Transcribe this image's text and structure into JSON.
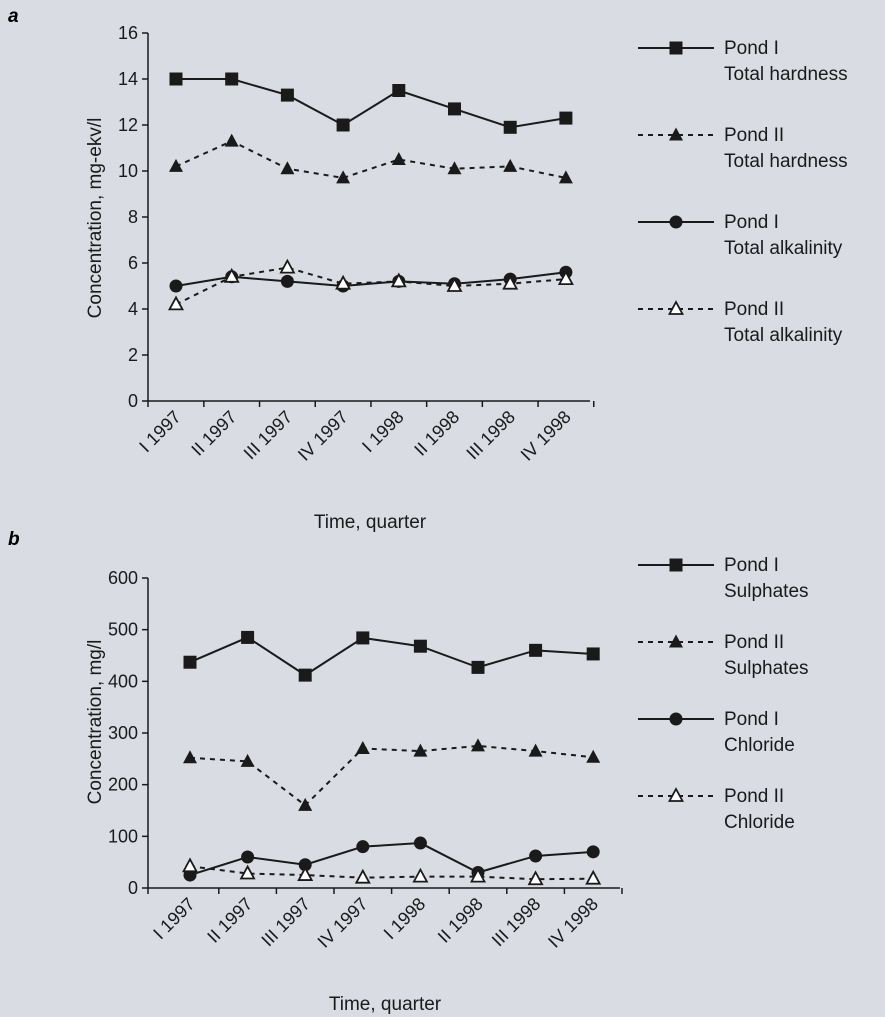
{
  "panels": [
    {
      "letter": "a",
      "ylabel": "Concentration, mg-ekv/l",
      "xlabel": "Time, quarter"
    },
    {
      "letter": "b",
      "ylabel": "Concentration, mg/l",
      "xlabel": "Time, quarter"
    }
  ],
  "chart_data": [
    {
      "type": "line",
      "panel": "a",
      "xlabel": "Time, quarter",
      "ylabel": "Concentration, mg-ekv/l",
      "ylim": [
        0,
        16
      ],
      "yticks": [
        0,
        2,
        4,
        6,
        8,
        10,
        12,
        14,
        16
      ],
      "categories": [
        "I 1997",
        "II 1997",
        "III 1997",
        "IV 1997",
        "I 1998",
        "II 1998",
        "III 1998",
        "IV 1998"
      ],
      "legend_position": "right",
      "series": [
        {
          "name": [
            "Pond I",
            "Total hardness"
          ],
          "marker": "square-filled",
          "line": "solid",
          "values": [
            14.0,
            14.0,
            13.3,
            12.0,
            13.5,
            12.7,
            11.9,
            12.3
          ]
        },
        {
          "name": [
            "Pond II",
            "Total hardness"
          ],
          "marker": "triangle-filled",
          "line": "dashed",
          "values": [
            10.2,
            11.3,
            10.1,
            9.7,
            10.5,
            10.1,
            10.2,
            9.7
          ]
        },
        {
          "name": [
            "Pond I",
            "Total alkalinity"
          ],
          "marker": "circle-filled",
          "line": "solid",
          "values": [
            5.0,
            5.4,
            5.2,
            5.0,
            5.2,
            5.1,
            5.3,
            5.6
          ]
        },
        {
          "name": [
            "Pond II",
            "Total alkalinity"
          ],
          "marker": "triangle-open",
          "line": "dashed",
          "values": [
            4.2,
            5.4,
            5.8,
            5.1,
            5.2,
            5.0,
            5.1,
            5.3
          ]
        }
      ]
    },
    {
      "type": "line",
      "panel": "b",
      "xlabel": "Time, quarter",
      "ylabel": "Concentration, mg/l",
      "ylim": [
        0,
        600
      ],
      "yticks": [
        0,
        100,
        200,
        300,
        400,
        500,
        600
      ],
      "categories": [
        "I 1997",
        "II 1997",
        "III 1997",
        "IV 1997",
        "I 1998",
        "II 1998",
        "III 1998",
        "IV 1998"
      ],
      "legend_position": "right",
      "series": [
        {
          "name": [
            "Pond I",
            "Sulphates"
          ],
          "marker": "square-filled",
          "line": "solid",
          "values": [
            437,
            485,
            412,
            484,
            468,
            427,
            460,
            453
          ]
        },
        {
          "name": [
            "Pond II",
            "Sulphates"
          ],
          "marker": "triangle-filled",
          "line": "dashed",
          "values": [
            252,
            245,
            160,
            270,
            265,
            275,
            265,
            253
          ]
        },
        {
          "name": [
            "Pond I",
            "Chloride"
          ],
          "marker": "circle-filled",
          "line": "solid",
          "values": [
            25,
            60,
            45,
            80,
            87,
            30,
            62,
            70
          ]
        },
        {
          "name": [
            "Pond II",
            "Chloride"
          ],
          "marker": "triangle-open",
          "line": "dashed",
          "values": [
            42,
            28,
            25,
            20,
            22,
            22,
            17,
            18
          ]
        }
      ]
    }
  ]
}
